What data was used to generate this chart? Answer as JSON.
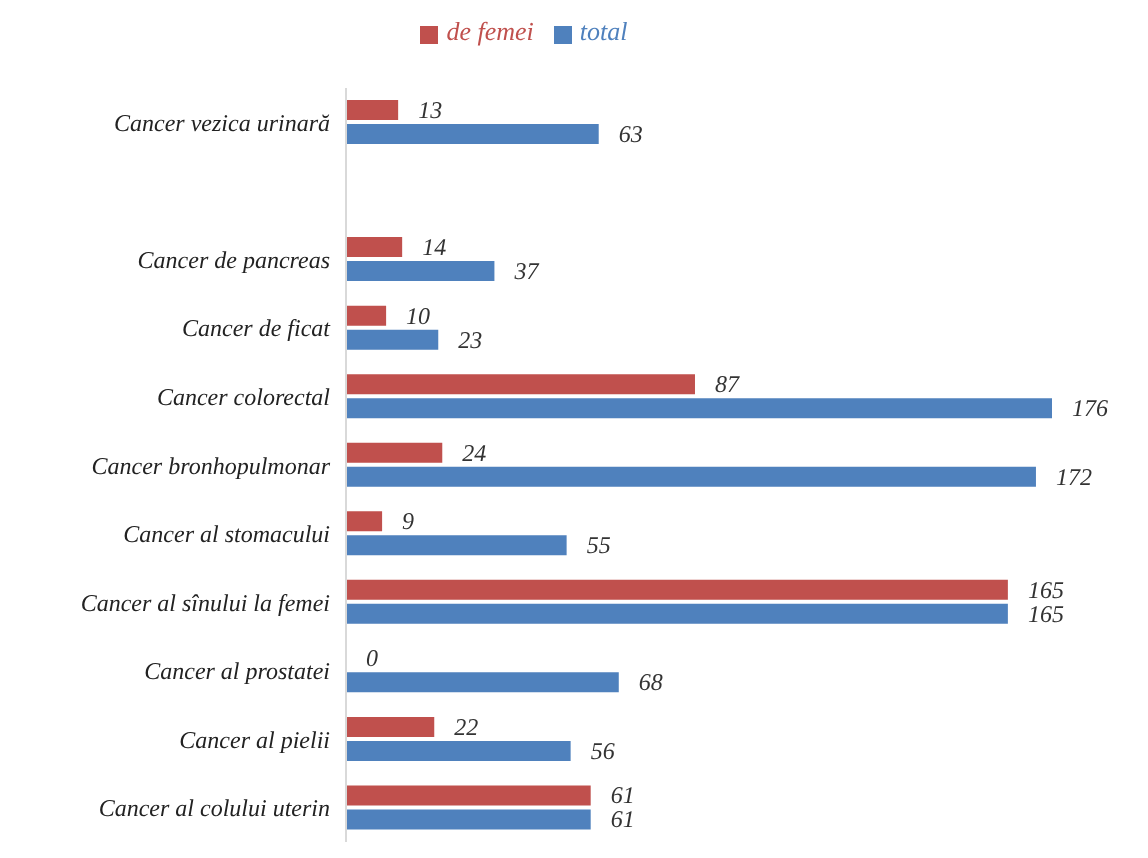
{
  "chart_data": {
    "type": "bar",
    "orientation": "horizontal",
    "categories": [
      "Cancer vezica urinară",
      null,
      "Cancer de pancreas",
      "Cancer de ficat",
      "Cancer colorectal",
      "Cancer bronhopulmonar",
      "Cancer al stomacului",
      "Cancer al sînului la femei",
      "Cancer al prostatei",
      "Cancer al pielii",
      "Cancer al colului uterin"
    ],
    "series": [
      {
        "name": "de femei",
        "color": "#c0504d",
        "values": [
          13,
          null,
          14,
          10,
          87,
          24,
          9,
          165,
          0,
          22,
          61
        ]
      },
      {
        "name": "total",
        "color": "#4f81bd",
        "values": [
          63,
          null,
          37,
          23,
          176,
          172,
          55,
          165,
          68,
          56,
          61
        ]
      }
    ],
    "data_labels": true,
    "legend": "top",
    "grid": false
  }
}
